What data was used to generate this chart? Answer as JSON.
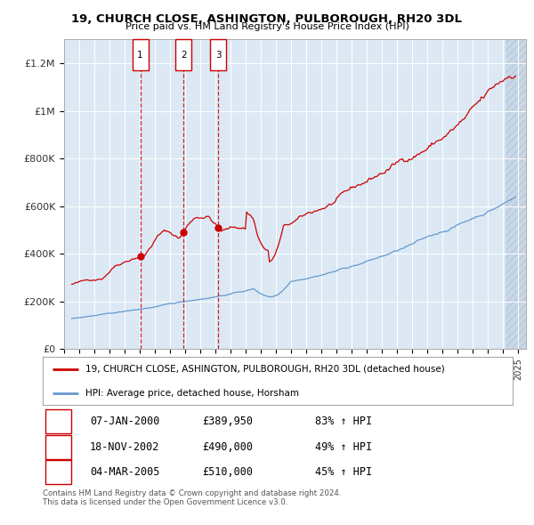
{
  "title": "19, CHURCH CLOSE, ASHINGTON, PULBOROUGH, RH20 3DL",
  "subtitle": "Price paid vs. HM Land Registry's House Price Index (HPI)",
  "background_color": "#ffffff",
  "plot_bg_color": "#dce9f5",
  "ylabel": "",
  "xlabel": "",
  "ylim": [
    0,
    1300000
  ],
  "yticks": [
    0,
    200000,
    400000,
    600000,
    800000,
    1000000,
    1200000
  ],
  "ytick_labels": [
    "£0",
    "£200K",
    "£400K",
    "£600K",
    "£800K",
    "£1M",
    "£1.2M"
  ],
  "x_start_year": 1995,
  "x_end_year": 2025,
  "sale_dates": [
    2000.03,
    2002.89,
    2005.17
  ],
  "sale_prices": [
    389950,
    490000,
    510000
  ],
  "sale_labels": [
    "1",
    "2",
    "3"
  ],
  "red_line_color": "#cc0000",
  "blue_line_color": "#6699cc",
  "marker_color": "#cc0000",
  "vline_color": "#cc0000",
  "legend_label_red": "19, CHURCH CLOSE, ASHINGTON, PULBOROUGH, RH20 3DL (detached house)",
  "legend_label_blue": "HPI: Average price, detached house, Horsham",
  "table_rows": [
    [
      "1",
      "07-JAN-2000",
      "£389,950",
      "83% ↑ HPI"
    ],
    [
      "2",
      "18-NOV-2002",
      "£490,000",
      "49% ↑ HPI"
    ],
    [
      "3",
      "04-MAR-2005",
      "£510,000",
      "45% ↑ HPI"
    ]
  ],
  "footer_text": "Contains HM Land Registry data © Crown copyright and database right 2024.\nThis data is licensed under the Open Government Licence v3.0.",
  "grid_color": "#ffffff",
  "tick_label_color": "#333333"
}
